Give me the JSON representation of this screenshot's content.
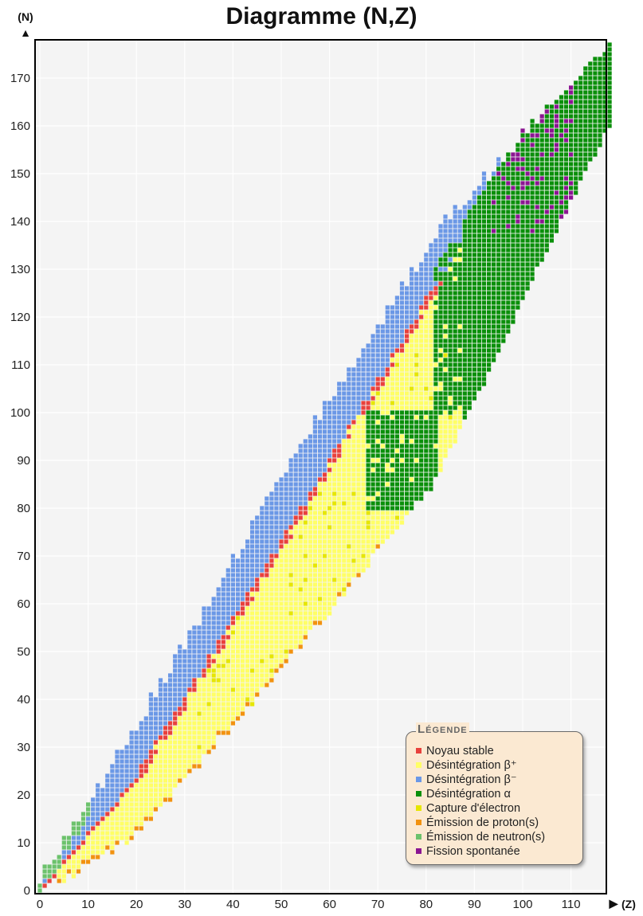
{
  "chart_data": {
    "type": "heatmap",
    "title": "Diagramme (N,Z)",
    "xlabel": "(Z)",
    "ylabel": "(N)",
    "xlim": [
      0,
      118
    ],
    "ylim": [
      0,
      178
    ],
    "xticks": [
      0,
      10,
      20,
      30,
      40,
      50,
      60,
      70,
      80,
      90,
      100,
      110
    ],
    "yticks": [
      0,
      10,
      20,
      30,
      40,
      50,
      60,
      70,
      80,
      90,
      100,
      110,
      120,
      130,
      140,
      150,
      160,
      170
    ],
    "grid": true,
    "legend_title": "Légende",
    "legend_position": "bottom-right",
    "categories": [
      {
        "key": "stable",
        "label": "Noyau stable",
        "color": "#e8413c"
      },
      {
        "key": "beta_plus",
        "label": "Désintégration β⁺",
        "color": "#ffff66"
      },
      {
        "key": "beta_minus",
        "label": "Désintégration β⁻",
        "color": "#6b98e6"
      },
      {
        "key": "alpha",
        "label": "Désintégration α",
        "color": "#0a8f0a"
      },
      {
        "key": "ec",
        "label": "Capture d'électron",
        "color": "#e6e600"
      },
      {
        "key": "proton",
        "label": "Émission de proton(s)",
        "color": "#f2920f"
      },
      {
        "key": "neutron",
        "label": "Émission de neutron(s)",
        "color": "#6cc26c"
      },
      {
        "key": "fission",
        "label": "Fission spontanée",
        "color": "#8b1592"
      }
    ],
    "bands": [
      {
        "z": [
          0,
          20
        ],
        "stable_n": [
          0,
          23
        ],
        "n_min": [
          0,
          12
        ],
        "n_max": [
          2,
          34
        ]
      },
      {
        "z": [
          20,
          50
        ],
        "stable_n": [
          23,
          72
        ],
        "n_min": [
          12,
          47
        ],
        "n_max": [
          34,
          86
        ]
      },
      {
        "z": [
          50,
          82
        ],
        "stable_n": [
          72,
          126
        ],
        "n_min": [
          47,
          86
        ],
        "n_max": [
          86,
          137
        ]
      },
      {
        "z": [
          82,
          100
        ],
        "stable_n": [
          126,
          153
        ],
        "n_min": [
          86,
          124
        ],
        "n_max": [
          137,
          158
        ]
      },
      {
        "z": [
          100,
          118
        ],
        "stable_n": [
          153,
          176
        ],
        "n_min": [
          124,
          160
        ],
        "n_max": [
          158,
          177
        ]
      }
    ],
    "stable_z_max": 83,
    "alpha_region": [
      {
        "z": [
          68,
          82
        ],
        "n": [
          80,
          100
        ]
      },
      {
        "z": [
          82,
          91
        ],
        "n": [
          100,
          135
        ]
      },
      {
        "z": [
          88,
          118
        ],
        "n": [
          132,
          177
        ]
      }
    ],
    "fission_region": {
      "z": [
        94,
        110
      ],
      "n": [
        138,
        172
      ]
    },
    "neutron_emitter_edge": {
      "z": [
        0,
        10
      ],
      "n_excess": [
        2,
        6
      ]
    },
    "proton_emitter_edge": {
      "z": [
        2,
        70
      ],
      "n_deficit": [
        0,
        4
      ]
    }
  }
}
